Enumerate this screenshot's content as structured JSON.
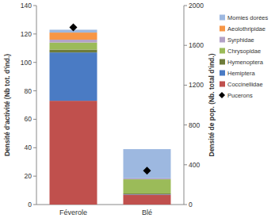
{
  "chart_data": {
    "type": "bar",
    "stacked": true,
    "legend": "right",
    "categories": [
      "Féverole",
      "Blé"
    ],
    "y_label": "Densité d'activité (Nb tot. d'ind.)",
    "y2_label": "Densité de pop. (Nb. total d'ind.)",
    "ylim": [
      0,
      140
    ],
    "yticks": [
      0,
      20,
      40,
      60,
      80,
      100,
      120,
      140
    ],
    "y2lim": [
      0,
      2000
    ],
    "y2ticks": [
      0,
      400,
      800,
      1200,
      1600,
      2000
    ],
    "series": [
      {
        "name": "Coccinellidae",
        "color": "#c0504d",
        "values": [
          73,
          7
        ]
      },
      {
        "name": "Hemiptera",
        "color": "#4a7bc4",
        "values": [
          34,
          0.3
        ]
      },
      {
        "name": "Hymenoptera",
        "color": "#6e7c3a",
        "values": [
          2,
          0.5
        ]
      },
      {
        "name": "Chrysopidae",
        "color": "#9bbb59",
        "values": [
          5,
          10
        ]
      },
      {
        "name": "Syrphidae",
        "color": "#b3a2c7",
        "values": [
          2,
          0.7
        ]
      },
      {
        "name": "Aeolothripidae",
        "color": "#f79646",
        "values": [
          5,
          0
        ]
      },
      {
        "name": "Momies dorées",
        "color": "#9db8e0",
        "values": [
          2,
          20.5
        ]
      },
      {
        "name": "Pucerons",
        "type": "scatter",
        "marker": "diamond",
        "axis": "y2",
        "color": "#000000",
        "values": [
          1780,
          340
        ]
      }
    ]
  }
}
